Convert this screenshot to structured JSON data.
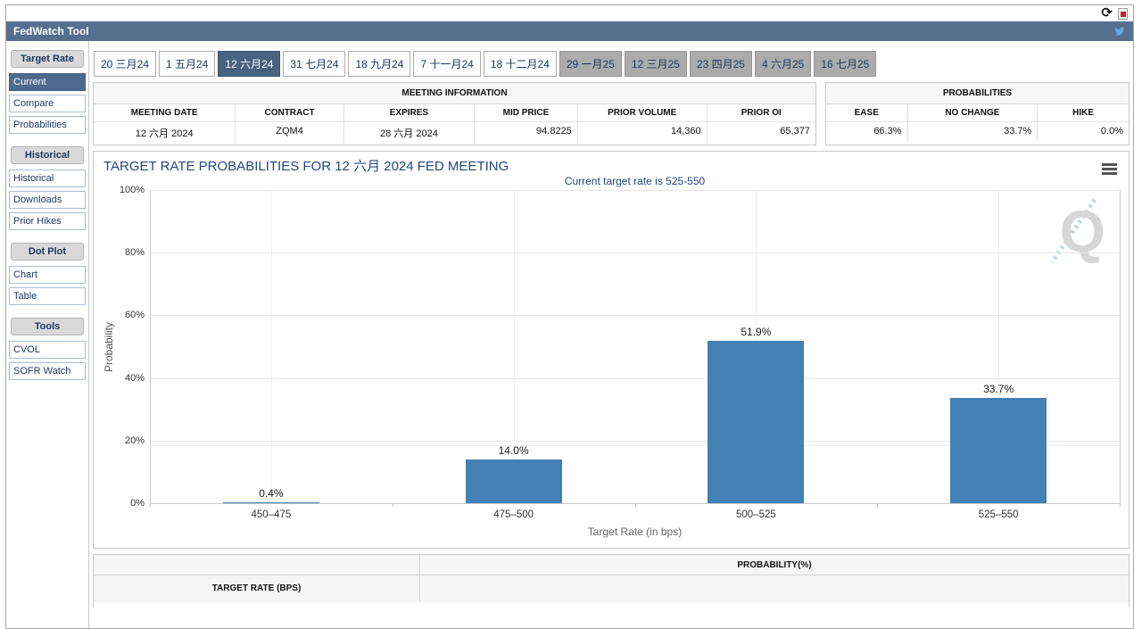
{
  "window": {
    "title": "FedWatch Tool",
    "icons": {
      "refresh": "refresh-icon",
      "pdf_export": "pdf-export-icon",
      "twitter": "twitter-icon",
      "chart_menu": "hamburger-menu-icon",
      "watermark": "quikstrike-q-watermark"
    },
    "refresh_glyph": "⟳"
  },
  "tabs": [
    {
      "label": "20 三月24",
      "state": "normal"
    },
    {
      "label": "1 五月24",
      "state": "normal"
    },
    {
      "label": "12 六月24",
      "state": "selected"
    },
    {
      "label": "31 七月24",
      "state": "normal"
    },
    {
      "label": "18 九月24",
      "state": "normal"
    },
    {
      "label": "7 十一月24",
      "state": "normal"
    },
    {
      "label": "18 十二月24",
      "state": "normal"
    },
    {
      "label": "29 一月25",
      "state": "future"
    },
    {
      "label": "12 三月25",
      "state": "future"
    },
    {
      "label": "23 四月25",
      "state": "future"
    },
    {
      "label": "4 六月25",
      "state": "future"
    },
    {
      "label": "16 七月25",
      "state": "future"
    }
  ],
  "sidebar": {
    "sections": [
      {
        "title": "Target Rate",
        "items": [
          {
            "label": "Current",
            "selected": true
          },
          {
            "label": "Compare",
            "selected": false
          },
          {
            "label": "Probabilities",
            "selected": false
          }
        ]
      },
      {
        "title": "Historical",
        "items": [
          {
            "label": "Historical",
            "selected": false
          },
          {
            "label": "Downloads",
            "selected": false
          },
          {
            "label": "Prior Hikes",
            "selected": false
          }
        ]
      },
      {
        "title": "Dot Plot",
        "items": [
          {
            "label": "Chart",
            "selected": false
          },
          {
            "label": "Table",
            "selected": false
          }
        ]
      },
      {
        "title": "Tools",
        "items": [
          {
            "label": "CVOL",
            "selected": false
          },
          {
            "label": "SOFR Watch",
            "selected": false
          }
        ]
      }
    ]
  },
  "meeting_info": {
    "title": "MEETING INFORMATION",
    "columns": [
      "MEETING DATE",
      "CONTRACT",
      "EXPIRES",
      "MID PRICE",
      "PRIOR VOLUME",
      "PRIOR OI"
    ],
    "values": [
      "12 六月 2024",
      "ZQM4",
      "28 六月 2024",
      "94.8225",
      "14,360",
      "65,377"
    ],
    "col_widths": [
      "19.7%",
      "15.0%",
      "18.1%",
      "14.3%",
      "17.9%",
      "15.0%"
    ],
    "value_align": [
      "center",
      "center",
      "center",
      "right",
      "right",
      "right"
    ]
  },
  "probabilities_info": {
    "title": "PROBABILITIES",
    "columns": [
      "EASE",
      "NO CHANGE",
      "HIKE"
    ],
    "values": [
      "66.3%",
      "33.7%",
      "0.0%"
    ],
    "col_widths": [
      "27%",
      "43%",
      "30%"
    ],
    "value_align": [
      "right",
      "right",
      "right"
    ]
  },
  "chart_data": {
    "type": "bar",
    "title": "TARGET RATE PROBABILITIES FOR 12 六月 2024 FED MEETING",
    "subtitle": "Current target rate is 525-550",
    "categories": [
      "450–475",
      "475–500",
      "500–525",
      "525–550"
    ],
    "values": [
      0.4,
      14.0,
      51.9,
      33.7
    ],
    "bar_labels": [
      "0.4%",
      "14.0%",
      "51.9%",
      "33.7%"
    ],
    "xlabel": "Target Rate (in bps)",
    "ylabel": "Probability",
    "ylim": [
      0,
      100
    ],
    "ytick_step": 20,
    "ytick_labels": [
      "0%",
      "20%",
      "40%",
      "60%",
      "80%",
      "100%"
    ],
    "grid": true,
    "legend_position": "none",
    "bar_color": "#4380b4"
  },
  "bottom_table": {
    "col1_header": "TARGET RATE (BPS)",
    "col2_header": "PROBABILITY(%)"
  }
}
